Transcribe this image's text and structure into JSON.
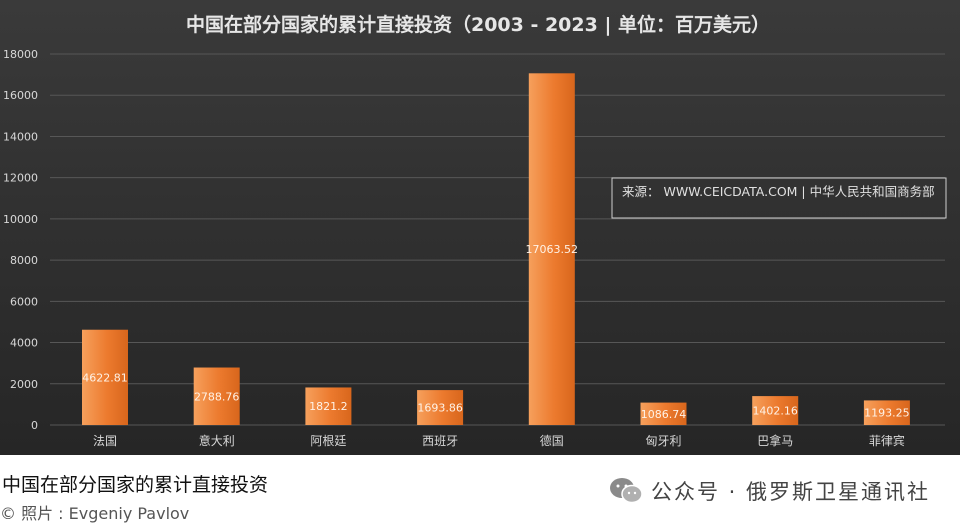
{
  "chart_data": {
    "type": "bar",
    "title": "中国在部分国家的累计直接投资（2003 - 2023 | 单位：百万美元）",
    "categories": [
      "法国",
      "意大利",
      "阿根廷",
      "西班牙",
      "德国",
      "匈牙利",
      "巴拿马",
      "菲律宾"
    ],
    "values": [
      4622.81,
      2788.76,
      1821.2,
      1693.86,
      17063.52,
      1086.74,
      1402.16,
      1193.25
    ],
    "value_labels": [
      "4622.81",
      "2788.76",
      "1821.2",
      "1693.86",
      "17063.52",
      "1086.74",
      "1402.16",
      "1193.25"
    ],
    "ylim": [
      0,
      18000
    ],
    "yticks": [
      0,
      2000,
      4000,
      6000,
      8000,
      10000,
      12000,
      14000,
      16000,
      18000
    ],
    "grid": true,
    "legend": "none",
    "annotation": "来源： WWW.CEICDATA.COM | 中华人民共和国商务部",
    "colors": {
      "background_top": "#3a3a3a",
      "background_bottom": "#262626",
      "bar": "#ec7a2e",
      "bar_highlight": "#f6a05c",
      "grid": "#575757",
      "text": "#d8d8d8"
    }
  },
  "caption": "中国在部分国家的累计直接投资",
  "credit": "© 照片 : Evgeniy Pavlov",
  "watermark": {
    "icon": "wechat-icon",
    "text": "公众号 · 俄罗斯卫星通讯社"
  }
}
